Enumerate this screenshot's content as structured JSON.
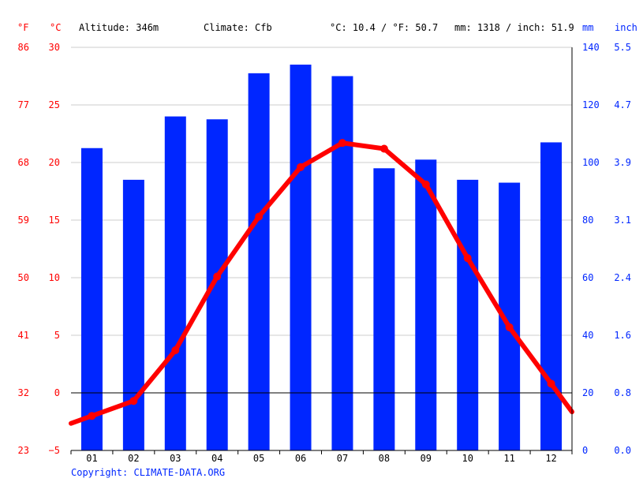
{
  "header": {
    "unit_f": "°F",
    "unit_c": "°C",
    "altitude": "Altitude: 346m",
    "climate": "Climate: Cfb",
    "temp_avg": "°C: 10.4 / °F: 50.7",
    "precip_total": "mm: 1318 / inch: 51.9",
    "unit_mm": "mm",
    "unit_inch": "inch"
  },
  "copyright": "Copyright: CLIMATE-DATA.ORG",
  "colors": {
    "temp": "#ff0000",
    "precip": "#0026ff",
    "grid": "#cccccc",
    "zero": "#000000"
  },
  "chart_data": {
    "type": "bar+line",
    "categories": [
      "01",
      "02",
      "03",
      "04",
      "05",
      "06",
      "07",
      "08",
      "09",
      "10",
      "11",
      "12"
    ],
    "series": [
      {
        "type": "bar",
        "axis": "mm",
        "values": [
          105,
          94,
          116,
          115,
          131,
          134,
          130,
          98,
          101,
          94,
          93,
          107
        ]
      },
      {
        "type": "line",
        "axis": "°C",
        "values": [
          -2.0,
          -0.7,
          3.7,
          10.1,
          15.3,
          19.6,
          21.7,
          21.2,
          18.1,
          11.7,
          5.7,
          0.8
        ]
      }
    ],
    "axes": {
      "f": {
        "ticks": [
          "86",
          "77",
          "68",
          "59",
          "50",
          "41",
          "32",
          "23"
        ]
      },
      "c": {
        "ticks": [
          "30",
          "25",
          "20",
          "15",
          "10",
          "5",
          "0",
          "−5"
        ],
        "range": [
          -5,
          30
        ]
      },
      "mm": {
        "ticks": [
          "140",
          "120",
          "100",
          "80",
          "60",
          "40",
          "20",
          "0"
        ],
        "range": [
          0,
          140
        ]
      },
      "inch": {
        "ticks": [
          "5.5",
          "4.7",
          "3.9",
          "3.1",
          "2.4",
          "1.6",
          "0.8",
          "0.0"
        ]
      }
    },
    "grid": true
  }
}
